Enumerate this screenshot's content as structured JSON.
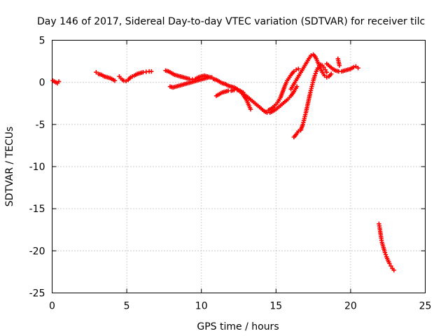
{
  "chart_data": {
    "type": "scatter",
    "title": "Day 146 of 2017, Sidereal Day-to-day VTEC variation (SDTVAR) for receiver tilc",
    "xlabel": "GPS time / hours",
    "ylabel": "SDTVAR / TECUs",
    "xlim": [
      0,
      25
    ],
    "ylim": [
      -25,
      5
    ],
    "xticks": [
      0,
      5,
      10,
      15,
      20,
      25
    ],
    "yticks": [
      -25,
      -20,
      -15,
      -10,
      -5,
      0,
      5
    ],
    "grid": true,
    "marker": "plus",
    "series": [
      {
        "color": "#ff0000",
        "segments": [
          [
            [
              0.05,
              0.2
            ],
            [
              0.15,
              0.1
            ],
            [
              0.25,
              0.0
            ],
            [
              0.35,
              -0.1
            ],
            [
              0.45,
              0.1
            ]
          ],
          [
            [
              2.95,
              1.2
            ],
            [
              3.1,
              1.0
            ],
            [
              3.3,
              0.9
            ],
            [
              3.5,
              0.7
            ],
            [
              3.7,
              0.6
            ],
            [
              3.9,
              0.5
            ],
            [
              4.1,
              0.3
            ],
            [
              4.2,
              0.2
            ]
          ],
          [
            [
              4.5,
              0.7
            ],
            [
              4.6,
              0.5
            ],
            [
              4.7,
              0.3
            ],
            [
              4.8,
              0.2
            ],
            [
              4.95,
              0.15
            ],
            [
              5.1,
              0.3
            ],
            [
              5.25,
              0.6
            ],
            [
              5.5,
              0.8
            ],
            [
              5.7,
              1.0
            ],
            [
              5.9,
              1.1
            ],
            [
              6.1,
              1.2
            ],
            [
              6.3,
              1.25
            ],
            [
              6.5,
              1.3
            ],
            [
              6.65,
              1.3
            ]
          ],
          [
            [
              7.6,
              1.4
            ],
            [
              7.8,
              1.3
            ],
            [
              8.0,
              1.1
            ],
            [
              8.2,
              0.9
            ],
            [
              8.4,
              0.8
            ],
            [
              8.6,
              0.7
            ],
            [
              8.8,
              0.6
            ],
            [
              9.0,
              0.5
            ],
            [
              9.2,
              0.4
            ],
            [
              9.4,
              0.35
            ],
            [
              9.6,
              0.4
            ],
            [
              9.8,
              0.6
            ],
            [
              10.0,
              0.7
            ],
            [
              10.2,
              0.8
            ],
            [
              10.4,
              0.7
            ],
            [
              10.6,
              0.6
            ]
          ],
          [
            [
              7.9,
              -0.5
            ],
            [
              8.1,
              -0.6
            ],
            [
              8.3,
              -0.5
            ],
            [
              8.5,
              -0.4
            ],
            [
              8.7,
              -0.3
            ],
            [
              8.9,
              -0.2
            ],
            [
              9.1,
              -0.1
            ],
            [
              9.3,
              0.0
            ],
            [
              9.5,
              0.1
            ],
            [
              9.7,
              0.2
            ],
            [
              9.9,
              0.3
            ],
            [
              10.1,
              0.4
            ],
            [
              10.3,
              0.5
            ],
            [
              10.5,
              0.6
            ],
            [
              10.7,
              0.6
            ]
          ],
          [
            [
              10.8,
              0.4
            ],
            [
              11.0,
              0.3
            ],
            [
              11.2,
              0.1
            ],
            [
              11.4,
              -0.1
            ],
            [
              11.6,
              -0.2
            ],
            [
              11.8,
              -0.4
            ],
            [
              12.0,
              -0.5
            ],
            [
              12.2,
              -0.6
            ],
            [
              12.4,
              -0.8
            ],
            [
              12.6,
              -1.1
            ],
            [
              12.8,
              -1.5
            ],
            [
              13.0,
              -2.0
            ],
            [
              13.15,
              -2.6
            ],
            [
              13.3,
              -3.2
            ]
          ],
          [
            [
              11.0,
              -1.6
            ],
            [
              11.2,
              -1.4
            ],
            [
              11.4,
              -1.2
            ],
            [
              11.6,
              -1.1
            ],
            [
              11.8,
              -1.0
            ],
            [
              12.0,
              -1.0
            ],
            [
              12.2,
              -0.9
            ],
            [
              12.4,
              -0.9
            ],
            [
              12.6,
              -1.0
            ],
            [
              12.8,
              -1.2
            ]
          ],
          [
            [
              12.8,
              -1.4
            ],
            [
              13.0,
              -1.6
            ],
            [
              13.2,
              -1.9
            ],
            [
              13.4,
              -2.2
            ],
            [
              13.6,
              -2.5
            ],
            [
              13.8,
              -2.8
            ],
            [
              14.0,
              -3.1
            ],
            [
              14.2,
              -3.4
            ],
            [
              14.4,
              -3.6
            ],
            [
              14.6,
              -3.6
            ],
            [
              14.8,
              -3.4
            ],
            [
              15.0,
              -3.2
            ],
            [
              15.2,
              -2.9
            ],
            [
              15.4,
              -2.6
            ],
            [
              15.6,
              -2.3
            ],
            [
              15.8,
              -2.0
            ],
            [
              16.0,
              -1.6
            ],
            [
              16.2,
              -1.1
            ],
            [
              16.4,
              -0.5
            ]
          ],
          [
            [
              14.5,
              -3.3
            ],
            [
              14.7,
              -3.1
            ],
            [
              14.9,
              -2.8
            ],
            [
              15.1,
              -2.4
            ],
            [
              15.3,
              -1.8
            ],
            [
              15.45,
              -1.1
            ],
            [
              15.6,
              -0.4
            ],
            [
              15.75,
              0.2
            ],
            [
              15.9,
              0.6
            ],
            [
              16.05,
              1.0
            ],
            [
              16.2,
              1.3
            ],
            [
              16.35,
              1.5
            ],
            [
              16.5,
              1.6
            ]
          ],
          [
            [
              16.2,
              -6.5
            ],
            [
              16.35,
              -6.2
            ],
            [
              16.5,
              -5.8
            ],
            [
              16.65,
              -5.7
            ],
            [
              16.8,
              -5.0
            ],
            [
              16.9,
              -4.3
            ],
            [
              17.0,
              -3.6
            ],
            [
              17.1,
              -2.8
            ],
            [
              17.2,
              -2.0
            ],
            [
              17.3,
              -1.2
            ],
            [
              17.4,
              -0.5
            ],
            [
              17.5,
              0.2
            ],
            [
              17.6,
              0.8
            ],
            [
              17.7,
              1.3
            ],
            [
              17.8,
              1.7
            ],
            [
              17.9,
              2.0
            ],
            [
              18.0,
              2.1
            ],
            [
              18.1,
              2.0
            ],
            [
              18.2,
              1.8
            ],
            [
              18.3,
              1.5
            ],
            [
              18.4,
              1.2
            ]
          ],
          [
            [
              16.0,
              -0.8
            ],
            [
              16.2,
              -0.2
            ],
            [
              16.4,
              0.4
            ],
            [
              16.6,
              1.0
            ],
            [
              16.8,
              1.6
            ],
            [
              17.0,
              2.2
            ],
            [
              17.2,
              2.8
            ],
            [
              17.35,
              3.2
            ],
            [
              17.5,
              3.3
            ],
            [
              17.65,
              3.0
            ],
            [
              17.8,
              2.4
            ],
            [
              17.95,
              1.8
            ],
            [
              18.1,
              1.2
            ],
            [
              18.25,
              0.8
            ],
            [
              18.4,
              0.6
            ],
            [
              18.55,
              0.7
            ],
            [
              18.7,
              1.0
            ]
          ],
          [
            [
              18.4,
              2.2
            ],
            [
              18.6,
              1.9
            ],
            [
              18.8,
              1.6
            ],
            [
              19.0,
              1.4
            ],
            [
              19.2,
              1.3
            ],
            [
              19.4,
              1.3
            ],
            [
              19.6,
              1.4
            ],
            [
              19.8,
              1.5
            ],
            [
              20.0,
              1.6
            ],
            [
              20.2,
              1.8
            ],
            [
              20.35,
              1.9
            ],
            [
              20.5,
              1.7
            ]
          ],
          [
            [
              19.15,
              2.8
            ],
            [
              19.2,
              2.4
            ],
            [
              19.25,
              2.0
            ]
          ],
          [
            [
              21.9,
              -16.8
            ],
            [
              21.95,
              -17.3
            ],
            [
              22.0,
              -17.9
            ],
            [
              22.05,
              -18.5
            ],
            [
              22.1,
              -19.0
            ],
            [
              22.2,
              -19.6
            ],
            [
              22.3,
              -20.2
            ],
            [
              22.4,
              -20.7
            ],
            [
              22.5,
              -21.1
            ],
            [
              22.6,
              -21.5
            ],
            [
              22.7,
              -21.8
            ],
            [
              22.8,
              -22.1
            ],
            [
              22.9,
              -22.3
            ]
          ]
        ]
      }
    ]
  }
}
